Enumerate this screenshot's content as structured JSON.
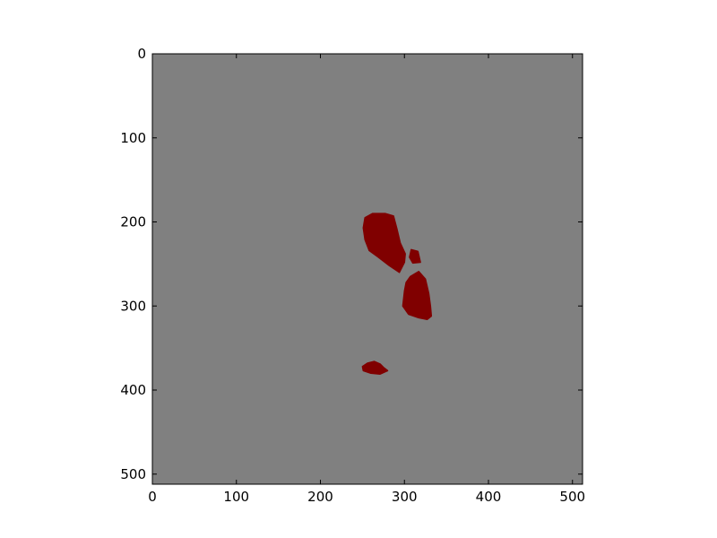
{
  "chart_data": {
    "type": "heatmap",
    "title": "",
    "xlabel": "",
    "ylabel": "",
    "xlim": [
      0,
      512
    ],
    "ylim": [
      512,
      0
    ],
    "x_ticks": [
      0,
      100,
      200,
      300,
      400,
      500
    ],
    "y_ticks": [
      0,
      100,
      200,
      300,
      400,
      500
    ],
    "x_tick_labels": [
      "0",
      "100",
      "200",
      "300",
      "400",
      "500"
    ],
    "y_tick_labels": [
      "0",
      "100",
      "200",
      "300",
      "400",
      "500"
    ],
    "grid": false,
    "legend": "none",
    "colors": {
      "background": "#808080",
      "region": "#800000",
      "figure_bg": "#ffffff",
      "axis": "#000000"
    },
    "regions": [
      {
        "points": [
          [
            253,
            195
          ],
          [
            262,
            190
          ],
          [
            277,
            190
          ],
          [
            287,
            193
          ],
          [
            291,
            208
          ],
          [
            295,
            225
          ],
          [
            301,
            238
          ],
          [
            300,
            248
          ],
          [
            294,
            260
          ],
          [
            282,
            252
          ],
          [
            269,
            242
          ],
          [
            258,
            234
          ],
          [
            253,
            221
          ],
          [
            251,
            207
          ]
        ]
      },
      {
        "points": [
          [
            308,
            233
          ],
          [
            316,
            235
          ],
          [
            319,
            248
          ],
          [
            310,
            249
          ],
          [
            306,
            242
          ]
        ]
      },
      {
        "points": [
          [
            307,
            265
          ],
          [
            317,
            259
          ],
          [
            325,
            268
          ],
          [
            329,
            285
          ],
          [
            331,
            300
          ],
          [
            332,
            312
          ],
          [
            327,
            316
          ],
          [
            317,
            314
          ],
          [
            305,
            310
          ],
          [
            298,
            300
          ],
          [
            300,
            282
          ],
          [
            302,
            272
          ]
        ]
      },
      {
        "points": [
          [
            250,
            372
          ],
          [
            256,
            368
          ],
          [
            264,
            366
          ],
          [
            271,
            369
          ],
          [
            275,
            373
          ],
          [
            280,
            377
          ],
          [
            271,
            381
          ],
          [
            260,
            380
          ],
          [
            251,
            377
          ]
        ]
      }
    ]
  }
}
